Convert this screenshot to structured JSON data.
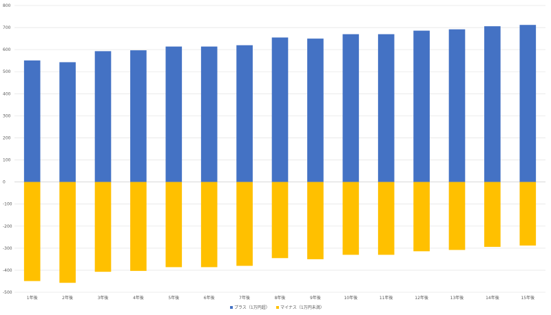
{
  "chart_data": {
    "type": "bar",
    "stacked": true,
    "categories": [
      "1年後",
      "2年後",
      "3年後",
      "4年後",
      "5年後",
      "6年後",
      "7年後",
      "8年後",
      "9年後",
      "10年後",
      "11年後",
      "12年後",
      "13年後",
      "14年後",
      "15年後"
    ],
    "series": [
      {
        "name": "プラス（1万円超）",
        "color": "#4472C4",
        "values": [
          551,
          543,
          593,
          597,
          614,
          614,
          620,
          655,
          650,
          670,
          670,
          686,
          692,
          706,
          712
        ]
      },
      {
        "name": "マイナス（1万円未満）",
        "color": "#FFC000",
        "values": [
          -449,
          -457,
          -407,
          -403,
          -386,
          -386,
          -380,
          -345,
          -350,
          -330,
          -330,
          -314,
          -308,
          -294,
          -288
        ]
      }
    ],
    "ylim": [
      -500,
      800
    ],
    "yticks": [
      800,
      700,
      600,
      500,
      400,
      300,
      200,
      100,
      0,
      -100,
      -200,
      -300,
      -400,
      -500
    ],
    "grid": true,
    "legend_position": "bottom",
    "title": "",
    "xlabel": "",
    "ylabel": ""
  }
}
